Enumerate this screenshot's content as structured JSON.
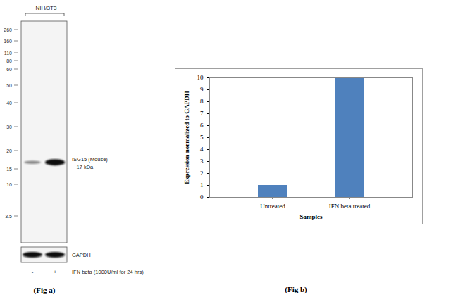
{
  "chart_data": {
    "type": "bar",
    "categories": [
      "Untreated",
      "IFN beta treated"
    ],
    "values": [
      1,
      10
    ],
    "color": "#4f81bd",
    "xlabel": "Samples",
    "ylabel": "Expression normalized to GAPDH",
    "ylim": [
      0,
      10
    ],
    "yticks": [
      0,
      1,
      2,
      3,
      4,
      5,
      6,
      7,
      8,
      9,
      10
    ],
    "caption": "(Fig b)"
  },
  "blot": {
    "cell_line": "NIH/3T3",
    "ladder_kda": [
      260,
      160,
      110,
      80,
      60,
      50,
      40,
      30,
      20,
      15,
      10,
      3.5
    ],
    "target": "ISG15 (Mouse)",
    "target_size": "~ 17 kDa",
    "target_kda": 17,
    "loading_control": "GAPDH",
    "treatment": "IFN beta (1000U/ml for 24 hrs)",
    "lanes": [
      "-",
      "+"
    ],
    "caption": "(Fig a)"
  }
}
